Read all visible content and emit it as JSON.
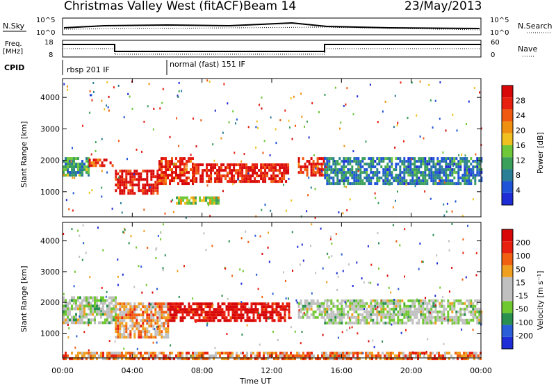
{
  "header": {
    "title": "Christmas Valley West (fitACF)",
    "beam": "Beam 14",
    "date": "23/May/2013"
  },
  "nsky_panel": {
    "left_label": "N.Sky",
    "left_ticks": [
      "10^5",
      "10^0"
    ],
    "right_ticks": [
      "10^5",
      "10^0"
    ],
    "right_label": "N.Search"
  },
  "freq_panel": {
    "left_label_top": "Freq.",
    "left_label_bottom": "[MHz]",
    "left_ticks": [
      "18",
      "8"
    ],
    "right_ticks": [
      "60",
      "0"
    ],
    "right_label": "Nave"
  },
  "cpid": {
    "label": "CPID",
    "modes": [
      "rbsp 201 IF",
      "normal (fast) 151 IF"
    ]
  },
  "x_axis": {
    "label": "Time UT",
    "ticks": [
      "00:00",
      "04:00",
      "08:00",
      "12:00",
      "16:00",
      "20:00",
      "00:00"
    ]
  },
  "chart_data": [
    {
      "type": "heatmap",
      "name": "power",
      "ylabel": "Slant Range [km]",
      "yticks": [
        "1000",
        "2000",
        "3000",
        "4000"
      ],
      "ylim": [
        200,
        4600
      ],
      "xlim_hours": [
        0,
        24
      ],
      "colorbar": {
        "label": "Power [dB]",
        "ticks": [
          "4",
          "8",
          "12",
          "16",
          "20",
          "24",
          "28"
        ],
        "colors": [
          "#1e2dd6",
          "#1f54d8",
          "#2a7f96",
          "#3aa05a",
          "#6fc83a",
          "#f0c020",
          "#f09010",
          "#f05a10",
          "#e82010",
          "#d80808"
        ]
      },
      "features": [
        {
          "t0": 0.0,
          "t1": 1.5,
          "r0": 1500,
          "r1": 2100,
          "level": 0.35
        },
        {
          "t0": 1.5,
          "t1": 2.9,
          "r0": 1800,
          "r1": 2050,
          "level": 0.8
        },
        {
          "t0": 3.0,
          "t1": 5.5,
          "r0": 950,
          "r1": 1700,
          "level": 0.92
        },
        {
          "t0": 5.5,
          "t1": 7.5,
          "r0": 1300,
          "r1": 2100,
          "level": 0.85
        },
        {
          "t0": 7.5,
          "t1": 13.0,
          "r0": 1350,
          "r1": 1900,
          "level": 0.9
        },
        {
          "t0": 13.5,
          "t1": 15.0,
          "r0": 1550,
          "r1": 2100,
          "level": 0.85
        },
        {
          "t0": 15.0,
          "t1": 24.0,
          "r0": 1300,
          "r1": 2100,
          "level": 0.25
        },
        {
          "t0": 6.5,
          "t1": 9.0,
          "r0": 600,
          "r1": 850,
          "level": 0.5
        }
      ]
    },
    {
      "type": "heatmap",
      "name": "velocity",
      "ylabel": "Slant Range [km]",
      "yticks": [
        "1000",
        "2000",
        "3000",
        "4000"
      ],
      "ylim": [
        200,
        4600
      ],
      "xlim_hours": [
        0,
        24
      ],
      "colorbar": {
        "label": "Velocity [m s⁻¹]",
        "ticks": [
          "200",
          "100",
          "50",
          "15",
          "-15",
          "-50",
          "-100",
          "-200"
        ],
        "colors": [
          "#1e2dd6",
          "#2a5ed8",
          "#2a9050",
          "#70c830",
          "#c0c0c0",
          "#c0c0c0",
          "#f0a020",
          "#f06010",
          "#e82010",
          "#d80808"
        ]
      },
      "features": [
        {
          "t0": 0.0,
          "t1": 3.0,
          "r0": 1300,
          "r1": 2200,
          "level": 0.45
        },
        {
          "t0": 3.0,
          "t1": 6.0,
          "r0": 900,
          "r1": 2000,
          "level": 0.65
        },
        {
          "t0": 6.0,
          "t1": 13.0,
          "r0": 1400,
          "r1": 2000,
          "level": 0.95
        },
        {
          "t0": 13.5,
          "t1": 15.0,
          "r0": 1550,
          "r1": 2100,
          "level": 0.45
        },
        {
          "t0": 15.0,
          "t1": 24.0,
          "r0": 1300,
          "r1": 2100,
          "level": 0.45
        },
        {
          "t0": 0.0,
          "t1": 24.0,
          "r0": 200,
          "r1": 400,
          "level": 0.7
        }
      ]
    }
  ]
}
